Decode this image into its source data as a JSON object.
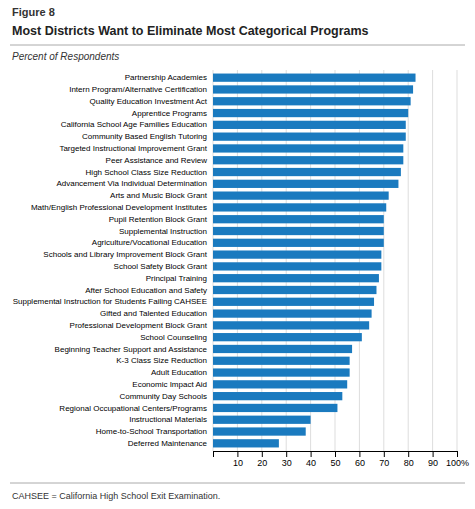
{
  "chart_data": {
    "type": "bar",
    "orientation": "horizontal",
    "title": "Most Districts Want to Eliminate Most Categorical Programs",
    "subtitle": "Percent of Respondents",
    "annotations": [
      "Figure 8",
      "CAHSEE = California High School Exit Examination."
    ],
    "categories": [
      "Partnership Academies",
      "Intern Program/Alternative Certification",
      "Quality Education Investment Act",
      "Apprentice Programs",
      "California School Age Families Education",
      "Community Based English Tutoring",
      "Targeted Instructional Improvement Grant",
      "Peer Assistance and Review",
      "High School Class Size Reduction",
      "Advancement Via Individual Determination",
      "Arts and Music Block Grant",
      "Math/English Professional Development Institutes",
      "Pupil Retention Block Grant",
      "Supplemental Instruction",
      "Agriculture/Vocational Education",
      "Schools and Library Improvement Block Grant",
      "School Safety Block Grant",
      "Principal Training",
      "After School Education and Safety",
      "Supplemental Instruction for Students Failing CAHSEE",
      "Gifted and Talented Education",
      "Professional Development Block Grant",
      "School Counseling",
      "Beginning Teacher Support and Assistance",
      "K-3 Class Size Reduction",
      "Adult Education",
      "Economic Impact Aid",
      "Community Day Schools",
      "Regional Occupational Centers/Programs",
      "Instructional Materials",
      "Home-to-School Transportation",
      "Deferred Maintenance"
    ],
    "values": [
      83,
      82,
      81,
      80,
      79,
      79,
      78,
      78,
      77,
      76,
      72,
      71,
      70,
      70,
      70,
      69,
      69,
      68,
      67,
      66,
      65,
      64,
      61,
      57,
      56,
      56,
      55,
      53,
      51,
      40,
      38,
      27
    ],
    "color": "#1a7abf",
    "xlim": [
      0,
      100
    ],
    "xticks": [
      {
        "value": 0,
        "label": null
      },
      10,
      20,
      30,
      40,
      50,
      60,
      70,
      80,
      90,
      {
        "value": 100,
        "label": "100%"
      }
    ],
    "grid": true
  }
}
